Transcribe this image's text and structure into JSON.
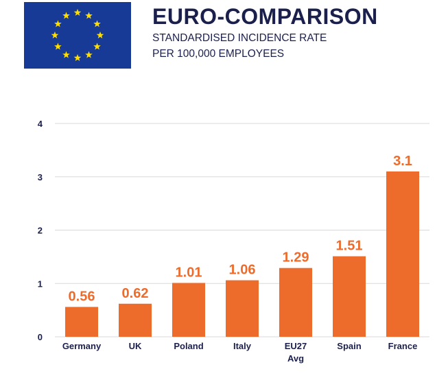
{
  "header": {
    "title": "EURO-COMPARISON",
    "subtitle_line1": "STANDARDISED INCIDENCE RATE",
    "subtitle_line2": "PER 100,000 EMPLOYEES"
  },
  "flag": {
    "background": "#173a97",
    "star_color": "#ffde00",
    "star_count": 12
  },
  "colors": {
    "bar": "#ed6b2b",
    "value_label": "#ed6b2b",
    "axis_text": "#1b1f4b",
    "grid": "#d9d9d9"
  },
  "chart_data": {
    "type": "bar",
    "categories": [
      [
        "Germany"
      ],
      [
        "UK"
      ],
      [
        "Poland"
      ],
      [
        "Italy"
      ],
      [
        "EU27",
        "Avg"
      ],
      [
        "Spain"
      ],
      [
        "France"
      ]
    ],
    "values": [
      0.56,
      0.62,
      1.01,
      1.06,
      1.29,
      1.51,
      3.1
    ],
    "value_labels": [
      "0.56",
      "0.62",
      "1.01",
      "1.06",
      "1.29",
      "1.51",
      "3.1"
    ],
    "yticks": [
      "0",
      "1",
      "2",
      "3",
      "4"
    ],
    "ylim": [
      0,
      4
    ],
    "grid": true
  }
}
